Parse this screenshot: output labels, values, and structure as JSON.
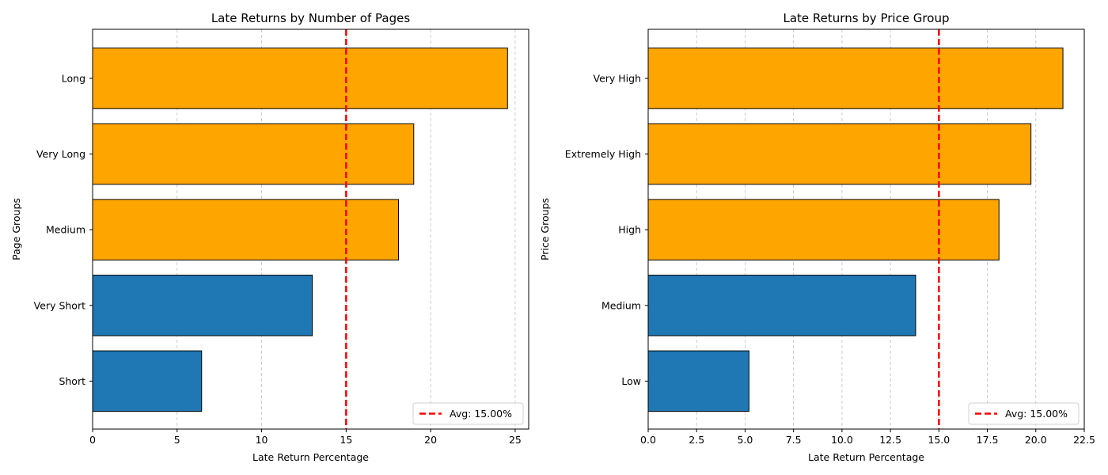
{
  "chart_data": [
    {
      "type": "bar",
      "orientation": "horizontal",
      "title": "Late Returns by Number of Pages",
      "xlabel": "Late Return Percentage",
      "ylabel": "Page Groups",
      "categories": [
        "Long",
        "Very Long",
        "Medium",
        "Very Short",
        "Short"
      ],
      "values": [
        24.55,
        19.0,
        18.1,
        13.0,
        6.45
      ],
      "colors": [
        "#FFA500",
        "#FFA500",
        "#FFA500",
        "#1F77B4",
        "#1F77B4"
      ],
      "xlim": [
        0,
        25.8
      ],
      "xticks": [
        0,
        5,
        10,
        15,
        20,
        25
      ],
      "xtick_labels": [
        "0",
        "5",
        "10",
        "15",
        "20",
        "25"
      ],
      "average": 15.0,
      "average_color": "#FF0000",
      "legend_label": "Avg: 15.00%",
      "legend_position": "lower-right",
      "grid_x": true
    },
    {
      "type": "bar",
      "orientation": "horizontal",
      "title": "Late Returns by Price Group",
      "xlabel": "Late Return Percentage",
      "ylabel": "Price Groups",
      "categories": [
        "Very High",
        "Extremely High",
        "High",
        "Medium",
        "Low"
      ],
      "values": [
        21.4,
        19.75,
        18.1,
        13.8,
        5.2
      ],
      "colors": [
        "#FFA500",
        "#FFA500",
        "#FFA500",
        "#1F77B4",
        "#1F77B4"
      ],
      "xlim": [
        0,
        22.5
      ],
      "xticks": [
        0,
        2.5,
        5,
        7.5,
        10,
        12.5,
        15,
        17.5,
        20,
        22.5
      ],
      "xtick_labels": [
        "0.0",
        "2.5",
        "5.0",
        "7.5",
        "10.0",
        "12.5",
        "15.0",
        "17.5",
        "20.0",
        "22.5"
      ],
      "average": 15.0,
      "average_color": "#FF0000",
      "legend_label": "Avg: 15.00%",
      "legend_position": "lower-right",
      "grid_x": true
    }
  ]
}
